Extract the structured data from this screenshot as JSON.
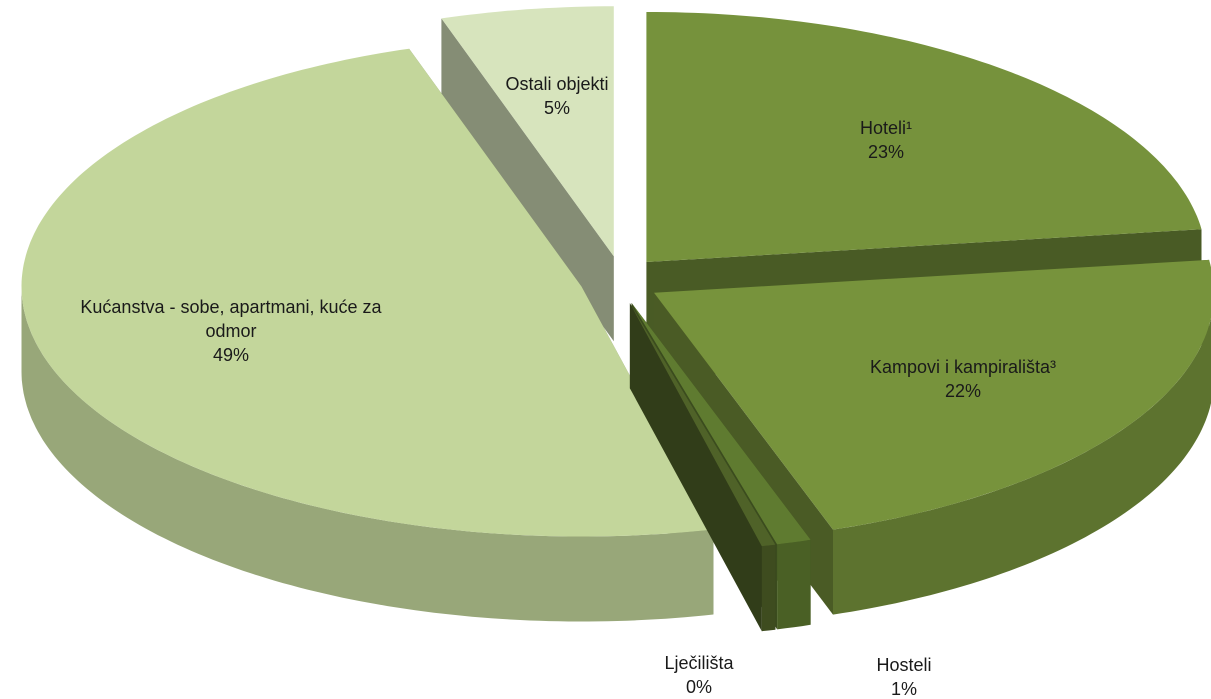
{
  "chart_data": {
    "type": "pie3d",
    "categories": [
      "Hoteli¹",
      "Kampovi i kampirališta³",
      "Hosteli",
      "Lječilišta",
      "Kućanstva - sobe, apartmani, kuće za odmor",
      "Ostali objekti"
    ],
    "values": [
      23,
      22,
      1,
      0.4,
      49,
      5
    ],
    "value_labels": [
      "23%",
      "22%",
      "1%",
      "0%",
      "49%",
      "5%"
    ],
    "colors": [
      "#76923c",
      "#77933c",
      "#5f7b30",
      "#4f6228",
      "#c3d69b",
      "#d7e4bd"
    ]
  }
}
